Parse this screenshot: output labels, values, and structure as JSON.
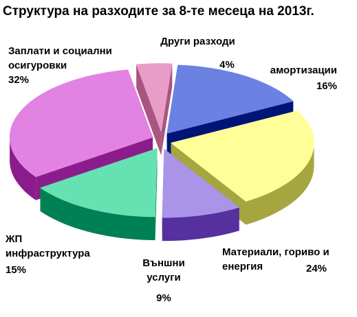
{
  "chart_data": {
    "type": "pie",
    "title": "Структура на разходите за 8-те месеца на 2013г.",
    "categories": [
      "Други разходи",
      "амортизации",
      "Материали, гориво и енергия",
      "Външни услуги",
      "ЖП инфраструктура",
      "Заплати и социални осигуровки"
    ],
    "values": [
      4,
      16,
      24,
      9,
      15,
      32
    ],
    "value_labels": [
      "4%",
      "16%",
      "24%",
      "9%",
      "15%",
      "32%"
    ],
    "colors": [
      "#e89cc8",
      "#6b82e2",
      "#ffff99",
      "#a994e8",
      "#66e2b2",
      "#e282e2"
    ],
    "side_colors": [
      "#a8557f",
      "#001478",
      "#a6a640",
      "#55309e",
      "#008055",
      "#8c1c8c"
    ]
  }
}
